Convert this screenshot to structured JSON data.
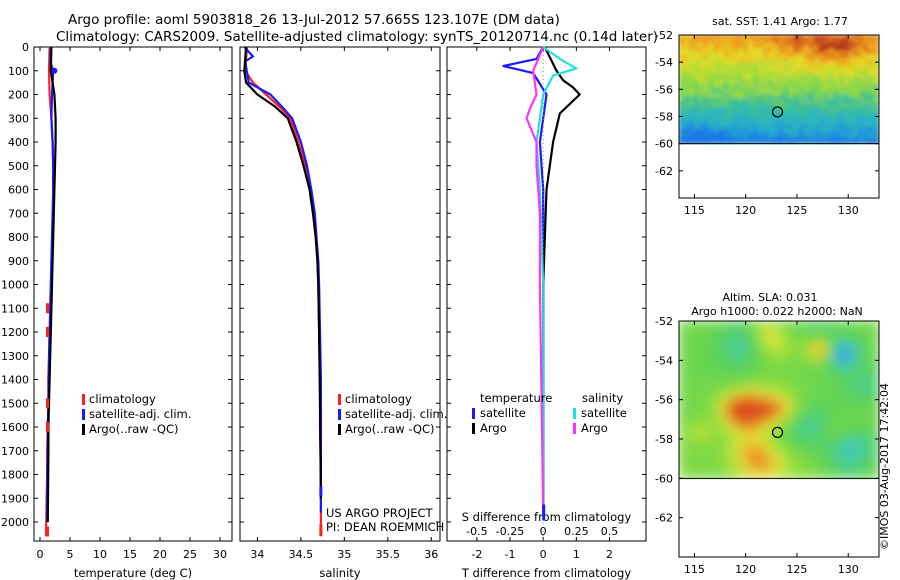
{
  "header": {
    "line1": "Argo profile: aoml 5903818_26 13-Jul-2012 57.665S 123.107E (DM data)",
    "line2": "Climatology: CARS2009. Satellite-adjusted climatology: synTS_20120714.nc (0.14d later)"
  },
  "colors": {
    "climatology": "#ff2020",
    "satellite": "#1a1aff",
    "argo": "#000000",
    "sal_satellite": "#22e0e0",
    "sal_argo": "#ff33ff"
  },
  "watermark": "©IMOS 03-Aug-2017 17:42:04",
  "chart_data": [
    {
      "type": "line",
      "name": "temperature-profile",
      "xlabel": "temperature (deg C)",
      "xlim": [
        -1,
        32
      ],
      "xticks": [
        0,
        5,
        10,
        15,
        20,
        25,
        30
      ],
      "ylim": [
        2080,
        0
      ],
      "yticks": [
        0,
        100,
        200,
        300,
        400,
        500,
        600,
        700,
        800,
        900,
        1000,
        1100,
        1200,
        1300,
        1400,
        1500,
        1600,
        1700,
        1800,
        1900,
        2000
      ],
      "legend": [
        "climatology",
        "satellite-adj. clim.",
        "Argo(..raw -QC)"
      ],
      "series": [
        {
          "name": "climatology",
          "color_key": "climatology",
          "x": [
            1.6,
            1.5,
            1.6,
            1.9,
            2.1,
            2.2,
            2.2,
            2.2,
            2.1,
            2.0,
            1.9,
            1.8,
            1.7,
            1.6,
            1.5,
            1.4,
            1.3,
            1.2,
            1.2,
            1.1,
            1.0
          ],
          "y": [
            0,
            100,
            200,
            300,
            400,
            500,
            600,
            700,
            800,
            900,
            1000,
            1100,
            1200,
            1300,
            1400,
            1500,
            1600,
            1700,
            1800,
            1900,
            2060
          ]
        },
        {
          "name": "satellite-adj. clim.",
          "color_key": "satellite",
          "x": [
            1.8,
            1.7,
            2.2,
            2.0,
            1.9,
            2.1,
            2.2,
            2.2,
            2.1,
            2.0,
            1.9,
            1.8,
            1.7,
            1.6,
            1.5,
            1.4,
            1.4,
            1.3,
            1.3,
            1.2,
            1.2
          ],
          "y": [
            0,
            60,
            100,
            200,
            300,
            400,
            500,
            600,
            700,
            800,
            900,
            1000,
            1100,
            1200,
            1300,
            1400,
            1500,
            1600,
            1700,
            1800,
            2000
          ]
        },
        {
          "name": "Argo(..raw -QC)",
          "color_key": "argo",
          "x": [
            1.9,
            1.8,
            2.4,
            2.6,
            2.6,
            2.5,
            2.4,
            2.3,
            2.2,
            2.1,
            2.0,
            1.9,
            1.8,
            1.7,
            1.6,
            1.5,
            1.4,
            1.4,
            1.3
          ],
          "y": [
            0,
            100,
            200,
            300,
            400,
            500,
            600,
            700,
            800,
            900,
            1000,
            1100,
            1200,
            1300,
            1400,
            1500,
            1600,
            1700,
            2000
          ]
        }
      ]
    },
    {
      "type": "line",
      "name": "salinity-profile",
      "xlabel": "salinity",
      "xlim": [
        33.8,
        36.1
      ],
      "xticks": [
        34,
        34.5,
        35,
        35.5,
        36
      ],
      "ylim": [
        2080,
        0
      ],
      "legend": [
        "climatology",
        "satellite-adj. clim.",
        "Argo(..raw -QC)"
      ],
      "annotation": [
        "US ARGO PROJECT",
        "PI: DEAN ROEMMICH"
      ],
      "series": [
        {
          "name": "climatology",
          "color_key": "climatology",
          "x": [
            33.88,
            33.86,
            33.95,
            34.1,
            34.25,
            34.38,
            34.47,
            34.55,
            34.6,
            34.64,
            34.67,
            34.69,
            34.7,
            34.71,
            34.72,
            34.72,
            34.73,
            34.73,
            34.73
          ],
          "y": [
            0,
            100,
            150,
            200,
            250,
            300,
            400,
            500,
            600,
            700,
            800,
            900,
            1000,
            1200,
            1400,
            1600,
            1800,
            1900,
            2060
          ]
        },
        {
          "name": "satellite-adj. clim.",
          "color_key": "satellite",
          "x": [
            33.85,
            33.95,
            33.86,
            33.9,
            34.15,
            34.28,
            34.4,
            34.5,
            34.57,
            34.62,
            34.66,
            34.68,
            34.7,
            34.71,
            34.72,
            34.73,
            34.73,
            34.73
          ],
          "y": [
            0,
            40,
            60,
            150,
            200,
            250,
            300,
            400,
            500,
            600,
            700,
            800,
            900,
            1000,
            1200,
            1400,
            1600,
            1960
          ]
        },
        {
          "name": "Argo(..raw -QC)",
          "color_key": "argo",
          "x": [
            33.87,
            33.85,
            33.87,
            34.0,
            34.2,
            34.35,
            34.45,
            34.53,
            34.6,
            34.64,
            34.67,
            34.69,
            34.7,
            34.71,
            34.72,
            34.73
          ],
          "y": [
            0,
            100,
            150,
            200,
            250,
            300,
            400,
            500,
            600,
            700,
            800,
            900,
            1000,
            1200,
            1500,
            1900
          ]
        }
      ]
    },
    {
      "type": "line",
      "name": "difference-profile",
      "xlabel": "T difference from climatology",
      "xlabel2": "S difference from climatology",
      "xlim": [
        -2.9,
        3.1
      ],
      "xticks": [
        -2,
        -1,
        0,
        1,
        2
      ],
      "sticks_labels": [
        "-0.5",
        "-0.25",
        "0",
        "0.25",
        "0.5"
      ],
      "sticks_pos": [
        -2,
        -1,
        0,
        1,
        2
      ],
      "ylim": [
        2080,
        0
      ],
      "legend_groups": {
        "temperature": [
          "satellite",
          "Argo"
        ],
        "salinity": [
          "satellite",
          "Argo"
        ]
      },
      "legend_titles": [
        "temperature",
        "salinity"
      ],
      "legend_labels": [
        "satellite",
        "Argo",
        "satellite",
        "Argo"
      ],
      "series": [
        {
          "name": "temperature satellite",
          "color_key": "satellite",
          "x": [
            0,
            -0.2,
            -1.2,
            -0.3,
            0.1,
            0.0,
            -0.1,
            0.0,
            0.0,
            0.0,
            0.0
          ],
          "y": [
            0,
            50,
            80,
            110,
            200,
            300,
            400,
            600,
            1000,
            1500,
            1960
          ]
        },
        {
          "name": "temperature Argo",
          "color_key": "argo",
          "x": [
            0.05,
            0.4,
            0.6,
            0.9,
            1.1,
            0.5,
            0.3,
            0.1,
            0.0,
            0.0
          ],
          "y": [
            0,
            100,
            140,
            170,
            200,
            280,
            400,
            600,
            1000,
            1960
          ]
        },
        {
          "name": "salinity satellite",
          "color_key": "sal_satellite",
          "x": [
            0,
            0.5,
            1.0,
            0.3,
            0.0,
            -0.1,
            -0.2,
            -0.1,
            0.0,
            0.0
          ],
          "y": [
            0,
            50,
            90,
            120,
            200,
            300,
            400,
            600,
            1000,
            1960
          ]
        },
        {
          "name": "salinity Argo",
          "color_key": "sal_argo",
          "x": [
            0,
            -0.3,
            -0.2,
            -0.4,
            -0.5,
            -0.2,
            -0.2,
            -0.1,
            -0.1,
            0.0
          ],
          "y": [
            0,
            100,
            200,
            260,
            300,
            400,
            500,
            700,
            1000,
            1960
          ]
        }
      ]
    },
    {
      "type": "heatmap",
      "name": "sst-map",
      "title": "sat. SST: 1.41  Argo: 1.77",
      "xticks": [
        115,
        120,
        125,
        130
      ],
      "yticks": [
        -52,
        -54,
        -56,
        -58,
        -60,
        -62
      ],
      "xlim": [
        113.5,
        133
      ],
      "ylim": [
        -64,
        -52
      ],
      "data_ylim": [
        -60,
        -52
      ],
      "argo_position": {
        "lon": 123.107,
        "lat": -57.665
      }
    },
    {
      "type": "heatmap",
      "name": "sla-map",
      "title_line1": "Altim. SLA: 0.031",
      "title_line2": "Argo h1000: 0.022 h2000: NaN",
      "xticks": [
        115,
        120,
        125,
        130
      ],
      "yticks": [
        -52,
        -54,
        -56,
        -58,
        -60,
        -62
      ],
      "xlim": [
        113.5,
        133
      ],
      "ylim": [
        -64,
        -52
      ],
      "data_ylim": [
        -60,
        -52
      ],
      "argo_position": {
        "lon": 123.107,
        "lat": -57.665
      }
    }
  ]
}
